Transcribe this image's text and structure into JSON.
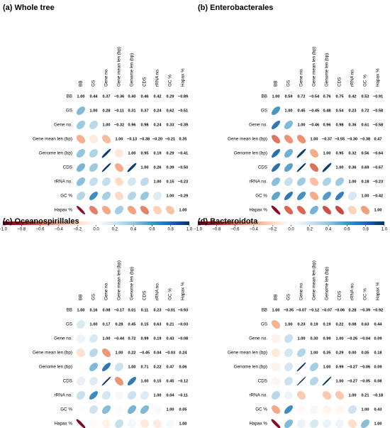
{
  "chart_data": [
    {
      "type": "corrplot",
      "title": "(a) Whole tree",
      "variables": [
        "BB",
        "GS",
        "Gene no.",
        "Gene mean len (bp)",
        "Genome len (bp)",
        "CDS",
        "rRNA no.",
        "GC %",
        "Hapax %"
      ],
      "values": [
        [
          1,
          0.44,
          0.37,
          -0.36,
          0.4,
          0.46,
          0.42,
          0.29,
          -0.89
        ],
        [
          1,
          0.28,
          -0.11,
          0.31,
          0.37,
          0.24,
          0.62,
          -0.51
        ],
        [
          1,
          -0.32,
          0.96,
          0.98,
          0.24,
          0.33,
          -0.39
        ],
        [
          1,
          -0.13,
          -0.38,
          -0.2,
          -0.21,
          0.35
        ],
        [
          1,
          0.95,
          0.19,
          0.29,
          -0.41
        ],
        [
          1,
          0.26,
          0.39,
          -0.5
        ],
        [
          1,
          0.15,
          -0.23
        ],
        [
          1,
          -0.29
        ],
        [
          1
        ]
      ],
      "value_labels": [
        [
          "1.00",
          "0.44",
          "0.37",
          "−0.36",
          "0.40",
          "0.46",
          "0.42",
          "0.29",
          "−0.89"
        ],
        [
          "1.00",
          "0.28",
          "−0.11",
          "0.31",
          "0.37",
          "0.24",
          "0.62",
          "−0.51"
        ],
        [
          "1.00",
          "−0.32",
          "0.96",
          "0.98",
          "0.24",
          "0.33",
          "−0.39"
        ],
        [
          "1.00",
          "−0.13",
          "−0.38",
          "−0.20",
          "−0.21",
          "0.35"
        ],
        [
          "1.00",
          "0.95",
          "0.19",
          "0.29",
          "−0.41"
        ],
        [
          "1.00",
          "0.26",
          "0.39",
          "−0.50"
        ],
        [
          "1.00",
          "0.15",
          "−0.23"
        ],
        [
          "1.00",
          "−0.29"
        ],
        [
          "1.00"
        ]
      ],
      "clim": [
        -1,
        1
      ],
      "cticks": [
        {
          "value": -1,
          "label": "−1.0"
        },
        {
          "value": -0.8,
          "label": "−0.8"
        },
        {
          "value": -0.6,
          "label": "−0.6"
        },
        {
          "value": -0.4,
          "label": "−0.4"
        },
        {
          "value": -0.2,
          "label": "−0.2"
        },
        {
          "value": 0,
          "label": "0.0"
        },
        {
          "value": 0.2,
          "label": "0.2"
        },
        {
          "value": 0.4,
          "label": "0.4"
        },
        {
          "value": 0.6,
          "label": "0.6"
        },
        {
          "value": 0.8,
          "label": "0.8"
        },
        {
          "value": 1,
          "label": "1.0"
        }
      ],
      "colors": [
        "#67001F",
        "#B2182B",
        "#D6604D",
        "#F4A582",
        "#FDDBC7",
        "#FFFFFF",
        "#D1E5F0",
        "#92C5DE",
        "#4393C3",
        "#2166AC",
        "#053061"
      ]
    },
    {
      "type": "corrplot",
      "title": "(b) Enterobacterales",
      "variables": [
        "BB",
        "GS",
        "Gene no.",
        "Gene mean len (bp)",
        "Genome len (bp)",
        "CDS",
        "rRNA no.",
        "GC %",
        "Hapax %"
      ],
      "values": [
        [
          1,
          0.59,
          0.72,
          -0.54,
          0.76,
          0.75,
          0.42,
          0.53,
          -0.91
        ],
        [
          1,
          0.45,
          -0.45,
          0.48,
          0.54,
          0.23,
          0.72,
          -0.58
        ],
        [
          1,
          -0.46,
          0.96,
          0.98,
          0.36,
          0.61,
          -0.58
        ],
        [
          1,
          -0.37,
          -0.55,
          -0.3,
          -0.38,
          0.47
        ],
        [
          1,
          0.95,
          0.32,
          0.56,
          -0.64
        ],
        [
          1,
          0.36,
          0.69,
          -0.67
        ],
        [
          1,
          0.18,
          -0.23
        ],
        [
          1,
          -0.42
        ],
        [
          1
        ]
      ],
      "value_labels": [
        [
          "1.00",
          "0.59",
          "0.72",
          "−0.54",
          "0.76",
          "0.75",
          "0.42",
          "0.53",
          "−0.91"
        ],
        [
          "1.00",
          "0.45",
          "−0.45",
          "0.48",
          "0.54",
          "0.23",
          "0.72",
          "−0.58"
        ],
        [
          "1.00",
          "−0.46",
          "0.96",
          "0.98",
          "0.36",
          "0.61",
          "−0.58"
        ],
        [
          "1.00",
          "−0.37",
          "−0.55",
          "−0.30",
          "−0.38",
          "0.47"
        ],
        [
          "1.00",
          "0.95",
          "0.32",
          "0.56",
          "−0.64"
        ],
        [
          "1.00",
          "0.36",
          "0.69",
          "−0.67"
        ],
        [
          "1.00",
          "0.18",
          "−0.23"
        ],
        [
          "1.00",
          "−0.42"
        ],
        [
          "1.00"
        ]
      ],
      "clim": [
        -1,
        1
      ],
      "cticks": [
        {
          "value": -1,
          "label": "−1.0"
        },
        {
          "value": -0.8,
          "label": "−0.8"
        },
        {
          "value": -0.6,
          "label": "−0.6"
        },
        {
          "value": -0.4,
          "label": "−0.4"
        },
        {
          "value": -0.2,
          "label": "−0.2"
        },
        {
          "value": 0,
          "label": "0.0"
        },
        {
          "value": 0.2,
          "label": "0.2"
        },
        {
          "value": 0.4,
          "label": "0.4"
        },
        {
          "value": 0.6,
          "label": "0.6"
        },
        {
          "value": 0.8,
          "label": "0.8"
        },
        {
          "value": 1,
          "label": "1.0"
        }
      ],
      "colors": [
        "#67001F",
        "#B2182B",
        "#D6604D",
        "#F4A582",
        "#FDDBC7",
        "#FFFFFF",
        "#D1E5F0",
        "#92C5DE",
        "#4393C3",
        "#2166AC",
        "#053061"
      ]
    },
    {
      "type": "corrplot",
      "title": "(c) Oceanospirillales",
      "variables": [
        "BB",
        "GS",
        "Gene no.",
        "Gene mean len (bp)",
        "Genome len (bp)",
        "CDS",
        "rRNA no.",
        "GC %",
        "Hapax %"
      ],
      "values": [
        [
          1,
          0.16,
          0.08,
          -0.17,
          0.01,
          0.11,
          0.23,
          -0.01,
          -0.93
        ],
        [
          1,
          0.17,
          0.28,
          0.45,
          0.15,
          0.63,
          0.21,
          -0.03
        ],
        [
          1,
          -0.44,
          0.72,
          0.99,
          0.19,
          0.43,
          -0.08
        ],
        [
          1,
          0.22,
          -0.45,
          0.04,
          -0.03,
          0.24
        ],
        [
          1,
          0.71,
          0.22,
          0.47,
          0.06
        ],
        [
          1,
          0.15,
          0.45,
          -0.12
        ],
        [
          1,
          0.04,
          -0.11
        ],
        [
          1,
          0.05
        ],
        [
          1
        ]
      ],
      "value_labels": [
        [
          "1.00",
          "0.16",
          "0.08",
          "−0.17",
          "0.01",
          "0.11",
          "0.23",
          "−0.01",
          "−0.93"
        ],
        [
          "1.00",
          "0.17",
          "0.28",
          "0.45",
          "0.15",
          "0.63",
          "0.21",
          "−0.03"
        ],
        [
          "1.00",
          "−0.44",
          "0.72",
          "0.99",
          "0.19",
          "0.43",
          "−0.08"
        ],
        [
          "1.00",
          "0.22",
          "−0.45",
          "0.04",
          "−0.03",
          "0.24"
        ],
        [
          "1.00",
          "0.71",
          "0.22",
          "0.47",
          "0.06"
        ],
        [
          "1.00",
          "0.15",
          "0.45",
          "−0.12"
        ],
        [
          "1.00",
          "0.04",
          "−0.11"
        ],
        [
          "1.00",
          "0.05"
        ],
        [
          "1.00"
        ]
      ],
      "clim": [
        -1,
        1
      ],
      "cticks": [
        {
          "value": -1,
          "label": "−1.0"
        },
        {
          "value": -0.8,
          "label": "−0.8"
        },
        {
          "value": -0.6,
          "label": "−0.6"
        },
        {
          "value": -0.4,
          "label": "−0.4"
        },
        {
          "value": -0.2,
          "label": "−0.2"
        },
        {
          "value": 0,
          "label": "0.0"
        },
        {
          "value": 0.2,
          "label": "0.2"
        },
        {
          "value": 0.4,
          "label": "0.4"
        },
        {
          "value": 0.6,
          "label": "0.6"
        },
        {
          "value": 0.8,
          "label": "0.8"
        },
        {
          "value": 1,
          "label": "1.0"
        }
      ],
      "colors": [
        "#67001F",
        "#B2182B",
        "#D6604D",
        "#F4A582",
        "#FDDBC7",
        "#FFFFFF",
        "#D1E5F0",
        "#92C5DE",
        "#4393C3",
        "#2166AC",
        "#053061"
      ]
    },
    {
      "type": "corrplot",
      "title": "(d) Bacteroidota",
      "variables": [
        "BB",
        "GS",
        "Gene no.",
        "Gene mean len (bp)",
        "Genome len (bp)",
        "CDS",
        "rRNA no.",
        "GC %",
        "Hapax %"
      ],
      "values": [
        [
          1,
          -0.35,
          -0.07,
          -0.12,
          -0.07,
          -0.06,
          0.28,
          -0.39,
          -0.92
        ],
        [
          1,
          0.23,
          0.19,
          0.19,
          0.22,
          0.08,
          0.63,
          0.44
        ],
        [
          1,
          0.3,
          0.99,
          1,
          -0.26,
          -0.04,
          0.09
        ],
        [
          1,
          0.35,
          0.29,
          0,
          0.05,
          0.18
        ],
        [
          1,
          0.99,
          -0.27,
          -0.06,
          0.09
        ],
        [
          1,
          -0.27,
          -0.05,
          0.08
        ],
        [
          1,
          0.21,
          -0.18
        ],
        [
          1,
          0.43
        ],
        [
          1
        ]
      ],
      "value_labels": [
        [
          "1.00",
          "−0.35",
          "−0.07",
          "−0.12",
          "−0.07",
          "−0.06",
          "0.28",
          "−0.39",
          "−0.92"
        ],
        [
          "1.00",
          "0.23",
          "0.19",
          "0.19",
          "0.22",
          "0.08",
          "0.63",
          "0.44"
        ],
        [
          "1.00",
          "0.30",
          "0.99",
          "1.00",
          "−0.26",
          "−0.04",
          "0.09"
        ],
        [
          "1.00",
          "0.35",
          "0.29",
          "0.00",
          "0.05",
          "0.18"
        ],
        [
          "1.00",
          "0.99",
          "−0.27",
          "−0.06",
          "0.09"
        ],
        [
          "1.00",
          "−0.27",
          "−0.05",
          "0.08"
        ],
        [
          "1.00",
          "0.21",
          "−0.18"
        ],
        [
          "1.00",
          "0.43"
        ],
        [
          "1.00"
        ]
      ],
      "clim": [
        -1,
        1
      ],
      "cticks": [
        {
          "value": -1,
          "label": "−1.0"
        },
        {
          "value": -0.8,
          "label": "−0.8"
        },
        {
          "value": -0.6,
          "label": "−0.6"
        },
        {
          "value": -0.4,
          "label": "−0.4"
        },
        {
          "value": -0.2,
          "label": "−0.2"
        },
        {
          "value": 0,
          "label": "0.0"
        },
        {
          "value": 0.2,
          "label": "0.2"
        },
        {
          "value": 0.4,
          "label": "0.4"
        },
        {
          "value": 0.6,
          "label": "0.6"
        },
        {
          "value": 0.8,
          "label": "0.8"
        },
        {
          "value": 1,
          "label": "1.0"
        }
      ],
      "colors": [
        "#67001F",
        "#B2182B",
        "#D6604D",
        "#F4A582",
        "#FDDBC7",
        "#FFFFFF",
        "#D1E5F0",
        "#92C5DE",
        "#4393C3",
        "#2166AC",
        "#053061"
      ]
    }
  ]
}
